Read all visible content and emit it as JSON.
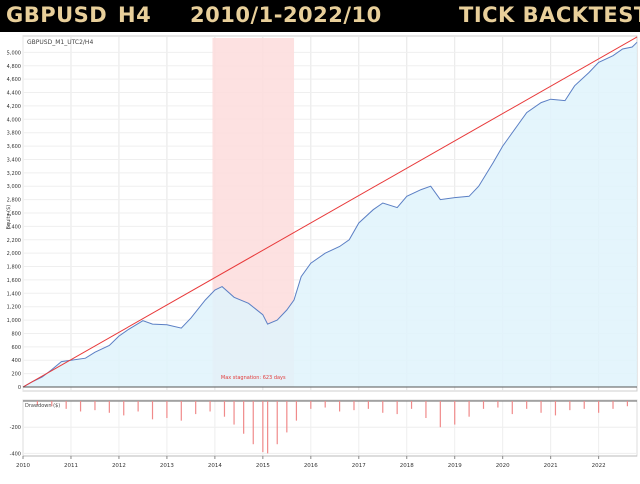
{
  "header": {
    "pair": "GBPUSD",
    "timeframe": "H4",
    "period": "2010/1-2022/10",
    "mode": "TICK BACKTEST"
  },
  "colors": {
    "header_bg": "#000000",
    "header_text": "#e8cf9a",
    "equity_line": "#5b7fc4",
    "equity_fill": "#dff3fc",
    "trend_line": "#e8393a",
    "stagnation_band": "#fddcdc",
    "drawdown_bars": "#f08a8a"
  },
  "chart_data": [
    {
      "type": "area",
      "title": "GBPUSD_M1_UTC2/H4",
      "ylabel": "Equity ($)",
      "xlabel": "",
      "x_ticks": [
        "2010",
        "2011",
        "2012",
        "2013",
        "2014",
        "2015",
        "2016",
        "2017",
        "2018",
        "2019",
        "2020",
        "2021",
        "2022"
      ],
      "x_range": [
        2010.0,
        2022.8
      ],
      "ylim": [
        0,
        5200
      ],
      "y_ticks": [
        {
          "value": 0,
          "label": "0"
        },
        {
          "value": 200,
          "label": "200"
        },
        {
          "value": 400,
          "label": "400"
        },
        {
          "value": 600,
          "label": "600"
        },
        {
          "value": 800,
          "label": "800"
        },
        {
          "value": 1000,
          "label": "1,000"
        },
        {
          "value": 1200,
          "label": "1,200"
        },
        {
          "value": 1400,
          "label": "1,400"
        },
        {
          "value": 1600,
          "label": "1,600"
        },
        {
          "value": 1800,
          "label": "1,800"
        },
        {
          "value": 2000,
          "label": "2,000"
        },
        {
          "value": 2200,
          "label": "2,200"
        },
        {
          "value": 2400,
          "label": "2,400"
        },
        {
          "value": 2600,
          "label": "2,600"
        },
        {
          "value": 2800,
          "label": "2,800"
        },
        {
          "value": 3000,
          "label": "3,000"
        },
        {
          "value": 3200,
          "label": "3,200"
        },
        {
          "value": 3400,
          "label": "3,400"
        },
        {
          "value": 3600,
          "label": "3,600"
        },
        {
          "value": 3800,
          "label": "3,800"
        },
        {
          "value": 4000,
          "label": "4,000"
        },
        {
          "value": 4200,
          "label": "4,200"
        },
        {
          "value": 4400,
          "label": "4,400"
        },
        {
          "value": 4600,
          "label": "4,600"
        },
        {
          "value": 4800,
          "label": "4,800"
        },
        {
          "value": 5000,
          "label": "5,000"
        }
      ],
      "grid": true,
      "series": [
        {
          "points": [
            [
              2010.0,
              0
            ],
            [
              2010.2,
              80
            ],
            [
              2010.4,
              150
            ],
            [
              2010.6,
              260
            ],
            [
              2010.8,
              380
            ],
            [
              2011.0,
              400
            ],
            [
              2011.3,
              430
            ],
            [
              2011.5,
              520
            ],
            [
              2011.8,
              620
            ],
            [
              2012.0,
              760
            ],
            [
              2012.2,
              860
            ],
            [
              2012.5,
              990
            ],
            [
              2012.7,
              940
            ],
            [
              2013.0,
              930
            ],
            [
              2013.3,
              880
            ],
            [
              2013.5,
              1030
            ],
            [
              2013.8,
              1300
            ],
            [
              2014.0,
              1450
            ],
            [
              2014.15,
              1500
            ],
            [
              2014.4,
              1340
            ],
            [
              2014.7,
              1250
            ],
            [
              2015.0,
              1080
            ],
            [
              2015.1,
              940
            ],
            [
              2015.3,
              1000
            ],
            [
              2015.5,
              1150
            ],
            [
              2015.65,
              1300
            ],
            [
              2015.8,
              1650
            ],
            [
              2016.0,
              1850
            ],
            [
              2016.3,
              2000
            ],
            [
              2016.6,
              2100
            ],
            [
              2016.8,
              2200
            ],
            [
              2017.0,
              2450
            ],
            [
              2017.3,
              2650
            ],
            [
              2017.5,
              2750
            ],
            [
              2017.8,
              2680
            ],
            [
              2018.0,
              2850
            ],
            [
              2018.3,
              2950
            ],
            [
              2018.5,
              3000
            ],
            [
              2018.7,
              2800
            ],
            [
              2019.0,
              2830
            ],
            [
              2019.3,
              2850
            ],
            [
              2019.5,
              3000
            ],
            [
              2019.8,
              3350
            ],
            [
              2020.0,
              3600
            ],
            [
              2020.3,
              3900
            ],
            [
              2020.5,
              4100
            ],
            [
              2020.8,
              4250
            ],
            [
              2021.0,
              4300
            ],
            [
              2021.3,
              4280
            ],
            [
              2021.5,
              4500
            ],
            [
              2021.8,
              4700
            ],
            [
              2022.0,
              4850
            ],
            [
              2022.3,
              4950
            ],
            [
              2022.5,
              5050
            ],
            [
              2022.7,
              5080
            ],
            [
              2022.8,
              5150
            ]
          ]
        }
      ],
      "trend_line": [
        [
          2010.0,
          0
        ],
        [
          2022.8,
          5230
        ]
      ],
      "stagnation": {
        "start": 2013.95,
        "end": 2015.65,
        "label": "Max stagnation: 623 days"
      }
    },
    {
      "type": "bar",
      "title": "",
      "ylabel": "Drawdown ($)",
      "ylim": [
        -420,
        0
      ],
      "y_ticks": [
        {
          "value": -200,
          "label": "-200"
        },
        {
          "value": -400,
          "label": "-400"
        }
      ],
      "x_ticks": [
        "2010",
        "2011",
        "2012",
        "2013",
        "2014",
        "2015",
        "2016",
        "2017",
        "2018",
        "2019",
        "2020",
        "2021",
        "2022"
      ],
      "series": [
        {
          "points": [
            [
              2010.3,
              -30
            ],
            [
              2010.6,
              -40
            ],
            [
              2010.9,
              -60
            ],
            [
              2011.2,
              -80
            ],
            [
              2011.5,
              -70
            ],
            [
              2011.8,
              -90
            ],
            [
              2012.1,
              -110
            ],
            [
              2012.4,
              -80
            ],
            [
              2012.7,
              -140
            ],
            [
              2013.0,
              -130
            ],
            [
              2013.3,
              -150
            ],
            [
              2013.6,
              -100
            ],
            [
              2013.9,
              -80
            ],
            [
              2014.2,
              -120
            ],
            [
              2014.4,
              -180
            ],
            [
              2014.6,
              -250
            ],
            [
              2014.8,
              -330
            ],
            [
              2015.0,
              -390
            ],
            [
              2015.1,
              -400
            ],
            [
              2015.3,
              -330
            ],
            [
              2015.5,
              -240
            ],
            [
              2015.7,
              -150
            ],
            [
              2016.0,
              -60
            ],
            [
              2016.3,
              -50
            ],
            [
              2016.6,
              -80
            ],
            [
              2016.9,
              -70
            ],
            [
              2017.2,
              -60
            ],
            [
              2017.5,
              -90
            ],
            [
              2017.8,
              -100
            ],
            [
              2018.1,
              -60
            ],
            [
              2018.4,
              -130
            ],
            [
              2018.7,
              -200
            ],
            [
              2019.0,
              -180
            ],
            [
              2019.3,
              -120
            ],
            [
              2019.6,
              -60
            ],
            [
              2019.9,
              -50
            ],
            [
              2020.2,
              -100
            ],
            [
              2020.5,
              -60
            ],
            [
              2020.8,
              -90
            ],
            [
              2021.1,
              -110
            ],
            [
              2021.4,
              -70
            ],
            [
              2021.7,
              -60
            ],
            [
              2022.0,
              -90
            ],
            [
              2022.3,
              -60
            ],
            [
              2022.6,
              -40
            ]
          ]
        }
      ]
    }
  ]
}
